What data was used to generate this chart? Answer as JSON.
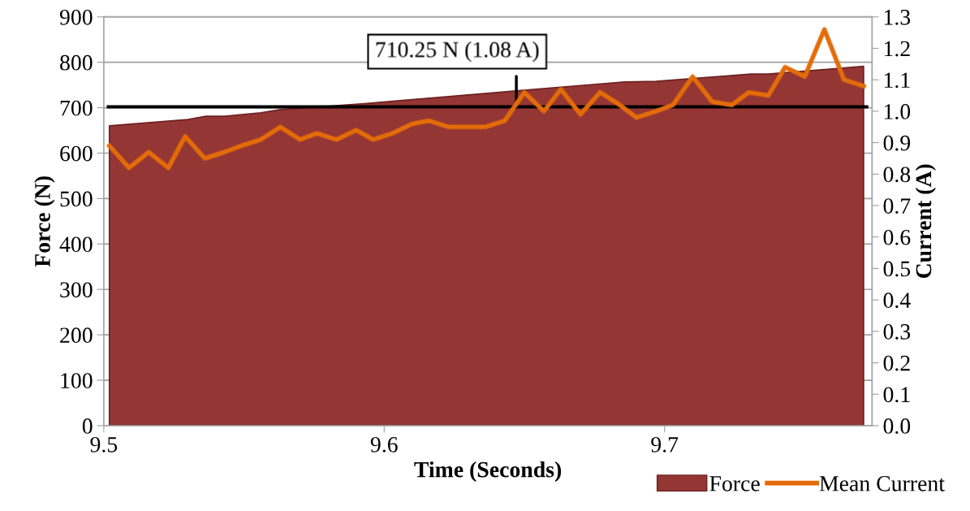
{
  "chart_data": {
    "type": "area",
    "xlabel": "Time (Seconds)",
    "ylabel": "Force (N)",
    "y2label": "Current (A)",
    "xlim": [
      9.5,
      9.774
    ],
    "xticks": [
      {
        "value": 9.5,
        "label": "9.5"
      },
      {
        "value": 9.6,
        "label": "9.6"
      },
      {
        "value": 9.7,
        "label": "9.7"
      }
    ],
    "ylim": [
      0,
      900
    ],
    "yticks": [
      0,
      100,
      200,
      300,
      400,
      500,
      600,
      700,
      800,
      900
    ],
    "y2lim": [
      0,
      1.3
    ],
    "y2ticks": [
      {
        "value": 0,
        "label": "0.0"
      },
      {
        "value": 0.1,
        "label": "0.1"
      },
      {
        "value": 0.2,
        "label": "0.2"
      },
      {
        "value": 0.3,
        "label": "0.3"
      },
      {
        "value": 0.4,
        "label": "0.4"
      },
      {
        "value": 0.5,
        "label": "0.5"
      },
      {
        "value": 0.6,
        "label": "0.6"
      },
      {
        "value": 0.7,
        "label": "0.7"
      },
      {
        "value": 0.8,
        "label": "0.8"
      },
      {
        "value": 0.9,
        "label": "0.9"
      },
      {
        "value": 1.0,
        "label": "1.0"
      },
      {
        "value": 1.1,
        "label": "1.1"
      },
      {
        "value": 1.2,
        "label": "1.2"
      },
      {
        "value": 1.3,
        "label": "1.3"
      }
    ],
    "grid": "y",
    "legend": "bottom right",
    "series": [
      {
        "name": "Force",
        "color": "#943634",
        "x": [
          9.502,
          9.53,
          9.536,
          9.543,
          9.556,
          9.563,
          9.593,
          9.647,
          9.686,
          9.697,
          9.731,
          9.737,
          9.771
        ],
        "values": [
          660,
          674,
          681,
          681,
          689,
          696,
          709,
          737,
          757,
          758,
          774,
          774,
          791
        ]
      },
      {
        "name": "Mean Current",
        "type": "line",
        "axis": "y2",
        "color": "#e36c09",
        "line_style": "solid",
        "marker": "none",
        "x": [
          9.502,
          9.509,
          9.516,
          9.523,
          9.529,
          9.536,
          9.543,
          9.549,
          9.556,
          9.563,
          9.57,
          9.576,
          9.583,
          9.59,
          9.596,
          9.603,
          9.61,
          9.616,
          9.623,
          9.63,
          9.636,
          9.643,
          9.65,
          9.657,
          9.663,
          9.67,
          9.677,
          9.684,
          9.69,
          9.697,
          9.703,
          9.71,
          9.717,
          9.724,
          9.73,
          9.737,
          9.743,
          9.75,
          9.757,
          9.764,
          9.771
        ],
        "values": [
          0.89,
          0.82,
          0.87,
          0.82,
          0.92,
          0.85,
          0.87,
          0.89,
          0.91,
          0.95,
          0.91,
          0.93,
          0.91,
          0.94,
          0.91,
          0.93,
          0.96,
          0.97,
          0.95,
          0.95,
          0.95,
          0.97,
          1.06,
          1.0,
          1.07,
          0.99,
          1.06,
          1.02,
          0.98,
          1.0,
          1.02,
          1.11,
          1.03,
          1.02,
          1.06,
          1.05,
          1.14,
          1.11,
          1.26,
          1.1,
          1.08
        ]
      }
    ],
    "ref_lines": [
      {
        "axis": "y",
        "value": 702,
        "label": "710.25 N (1.08 A)",
        "color": "#000000"
      }
    ]
  }
}
